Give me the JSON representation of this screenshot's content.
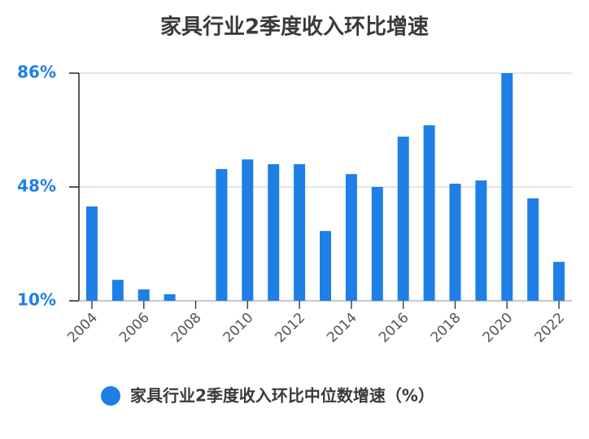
{
  "chart_data": {
    "type": "bar",
    "title": "家具行业2季度收入环比增速",
    "categories": [
      "2004",
      null,
      "2006",
      null,
      "2008",
      null,
      "2010",
      null,
      "2012",
      null,
      "2014",
      null,
      "2016",
      null,
      "2018",
      null,
      "2020",
      null,
      "2022"
    ],
    "series": [
      {
        "name": "家具行业2季度收入环比中位数增速（%）",
        "color": "#1e7fe6",
        "values": [
          41.5,
          17,
          13.8,
          12.2,
          10,
          54,
          57.2,
          55.6,
          55.6,
          33.3,
          52.3,
          48,
          64.8,
          68.6,
          49.1,
          50.2,
          86,
          44.2,
          23
        ]
      }
    ],
    "ylim": [
      10,
      86
    ],
    "yticks": [
      {
        "value": 10,
        "label": "10%"
      },
      {
        "value": 48,
        "label": "48%"
      },
      {
        "value": 86,
        "label": "86%"
      }
    ],
    "grid": true
  }
}
